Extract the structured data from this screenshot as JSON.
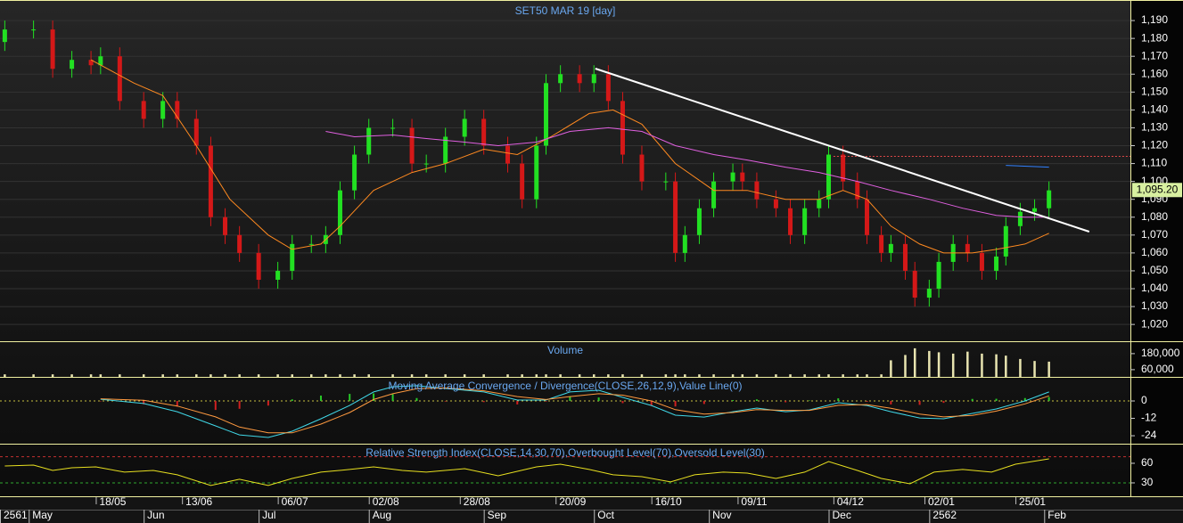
{
  "chart_data": [
    {
      "type": "candlestick",
      "title": "SET50 MAR 19   [day]",
      "x": [
        1,
        7,
        11,
        15,
        19,
        21,
        25,
        30,
        34,
        37,
        41,
        44,
        47,
        50,
        54,
        58,
        61,
        65,
        68,
        71,
        74,
        77,
        82,
        86,
        89,
        93,
        97,
        101,
        106,
        109,
        112,
        114,
        117,
        121,
        124,
        127,
        130,
        134,
        139,
        141,
        143,
        146,
        149,
        153,
        155,
        158,
        162,
        165,
        168,
        171,
        173,
        176,
        179,
        181,
        184,
        186,
        189,
        191,
        194,
        196,
        199,
        202,
        205,
        208,
        210,
        213,
        216,
        219
      ],
      "open": [
        1178,
        1185,
        1185,
        1163,
        1168,
        1165,
        1170,
        1145,
        1135,
        1145,
        1135,
        1120,
        1080,
        1070,
        1060,
        1045,
        1050,
        1065,
        1065,
        1070,
        1095,
        1115,
        1130,
        1130,
        1110,
        1110,
        1125,
        1135,
        1120,
        1110,
        1090,
        1120,
        1155,
        1160,
        1155,
        1160,
        1145,
        1115,
        1100,
        1100,
        1060,
        1070,
        1085,
        1100,
        1105,
        1100,
        1090,
        1085,
        1070,
        1085,
        1090,
        1115,
        1100,
        1090,
        1070,
        1060,
        1065,
        1050,
        1035,
        1040,
        1055,
        1065,
        1060,
        1050,
        1058,
        1075,
        1083,
        1085
      ],
      "high": [
        1190,
        1190,
        1190,
        1173,
        1173,
        1175,
        1175,
        1150,
        1150,
        1150,
        1140,
        1125,
        1085,
        1075,
        1065,
        1055,
        1070,
        1070,
        1075,
        1100,
        1120,
        1135,
        1135,
        1135,
        1115,
        1130,
        1140,
        1140,
        1125,
        1115,
        1125,
        1160,
        1165,
        1165,
        1165,
        1165,
        1150,
        1120,
        1105,
        1105,
        1075,
        1090,
        1105,
        1110,
        1110,
        1105,
        1095,
        1090,
        1090,
        1095,
        1120,
        1120,
        1105,
        1095,
        1075,
        1070,
        1070,
        1055,
        1045,
        1060,
        1070,
        1070,
        1065,
        1063,
        1080,
        1088,
        1090,
        1100
      ],
      "low": [
        1173,
        1180,
        1158,
        1158,
        1160,
        1160,
        1140,
        1130,
        1130,
        1130,
        1115,
        1075,
        1065,
        1055,
        1040,
        1040,
        1045,
        1060,
        1060,
        1065,
        1090,
        1110,
        1125,
        1105,
        1105,
        1105,
        1120,
        1115,
        1105,
        1085,
        1085,
        1115,
        1150,
        1150,
        1150,
        1140,
        1110,
        1095,
        1095,
        1055,
        1055,
        1065,
        1080,
        1095,
        1095,
        1085,
        1080,
        1065,
        1065,
        1080,
        1085,
        1095,
        1085,
        1065,
        1055,
        1055,
        1045,
        1030,
        1030,
        1035,
        1050,
        1055,
        1045,
        1045,
        1053,
        1070,
        1078,
        1080
      ],
      "close": [
        1185,
        1185,
        1163,
        1168,
        1165,
        1170,
        1145,
        1135,
        1145,
        1135,
        1120,
        1080,
        1070,
        1060,
        1045,
        1050,
        1065,
        1065,
        1070,
        1095,
        1115,
        1130,
        1130,
        1110,
        1110,
        1125,
        1135,
        1120,
        1110,
        1090,
        1120,
        1155,
        1160,
        1155,
        1160,
        1145,
        1115,
        1100,
        1100,
        1060,
        1070,
        1085,
        1100,
        1105,
        1100,
        1090,
        1085,
        1070,
        1085,
        1090,
        1115,
        1100,
        1090,
        1070,
        1060,
        1065,
        1050,
        1035,
        1040,
        1055,
        1065,
        1060,
        1050,
        1058,
        1075,
        1083,
        1085,
        1095
      ],
      "up_color": "#22e022",
      "down_color": "#d41818",
      "overlays": [
        {
          "color": "#ff8a20",
          "x": [
            19,
            28,
            34,
            41,
            48,
            56,
            61,
            67,
            71,
            78,
            86,
            93,
            101,
            108,
            115,
            123,
            128,
            134,
            141,
            149,
            156,
            164,
            171,
            176,
            181,
            186,
            192,
            197,
            203,
            208,
            214,
            219
          ],
          "values": [
            1168,
            1155,
            1148,
            1120,
            1090,
            1070,
            1062,
            1065,
            1075,
            1095,
            1105,
            1110,
            1118,
            1115,
            1125,
            1138,
            1140,
            1132,
            1110,
            1095,
            1095,
            1090,
            1090,
            1095,
            1090,
            1075,
            1065,
            1060,
            1060,
            1062,
            1065,
            1071
          ]
        },
        {
          "color": "#e060e0",
          "x": [
            68,
            74,
            82,
            89,
            97,
            104,
            112,
            119,
            127,
            134,
            141,
            149,
            156,
            164,
            171,
            179,
            186,
            194,
            201,
            208,
            214,
            219
          ],
          "values": [
            1128,
            1125,
            1126,
            1124,
            1122,
            1120,
            1122,
            1128,
            1130,
            1128,
            1120,
            1115,
            1112,
            1108,
            1105,
            1100,
            1095,
            1090,
            1085,
            1081,
            1080,
            1080
          ]
        },
        {
          "color": "#3080ff",
          "x": [
            210,
            219
          ],
          "values": [
            1109,
            1108
          ]
        },
        {
          "color": "#ffffff",
          "x": [
            124.3,
            227.4
          ],
          "values": [
            1163.1,
            1071.9
          ]
        }
      ],
      "reference_line": {
        "value": 1114,
        "from": 174,
        "color": "#e04848"
      },
      "last_price": {
        "value": 1095.2,
        "label": "1,095.20"
      },
      "xlim": [
        0,
        236
      ],
      "ylim": [
        1010.6,
        1200
      ],
      "grid": true,
      "yticks": [
        {
          "value": 1020,
          "label": "1,020"
        },
        {
          "value": 1030,
          "label": "1,030"
        },
        {
          "value": 1040,
          "label": "1,040"
        },
        {
          "value": 1050,
          "label": "1,050"
        },
        {
          "value": 1060,
          "label": "1,060"
        },
        {
          "value": 1070,
          "label": "1,070"
        },
        {
          "value": 1080,
          "label": "1,080"
        },
        {
          "value": 1090,
          "label": "1,090"
        },
        {
          "value": 1100,
          "label": "1,100"
        },
        {
          "value": 1110,
          "label": "1,110"
        },
        {
          "value": 1120,
          "label": "1,120"
        },
        {
          "value": 1130,
          "label": "1,130"
        },
        {
          "value": 1140,
          "label": "1,140"
        },
        {
          "value": 1150,
          "label": "1,150"
        },
        {
          "value": 1160,
          "label": "1,160"
        },
        {
          "value": 1170,
          "label": "1,170"
        },
        {
          "value": 1180,
          "label": "1,180"
        },
        {
          "value": 1190,
          "label": "1,190"
        }
      ]
    },
    {
      "type": "bar",
      "title": "Volume",
      "x": [
        1,
        7,
        11,
        15,
        19,
        21,
        25,
        30,
        34,
        37,
        41,
        44,
        47,
        50,
        54,
        58,
        61,
        65,
        68,
        71,
        74,
        77,
        82,
        86,
        89,
        93,
        97,
        101,
        106,
        109,
        112,
        114,
        117,
        121,
        124,
        127,
        130,
        134,
        139,
        141,
        143,
        146,
        149,
        153,
        155,
        158,
        162,
        165,
        168,
        171,
        173,
        176,
        179,
        181,
        184,
        186,
        189,
        191,
        194,
        196,
        199,
        202,
        205,
        208,
        210,
        213,
        216,
        219
      ],
      "values": [
        25000,
        25000,
        25000,
        25000,
        25000,
        25000,
        25000,
        25000,
        25000,
        25000,
        25000,
        25000,
        25000,
        25000,
        25000,
        25000,
        25000,
        25000,
        25000,
        25000,
        25000,
        25000,
        25000,
        25000,
        25000,
        25000,
        25000,
        25000,
        25000,
        25000,
        25000,
        25000,
        25000,
        25000,
        25000,
        25000,
        25000,
        25000,
        25000,
        25000,
        25000,
        25000,
        25000,
        25000,
        25000,
        25000,
        25000,
        25000,
        25000,
        25000,
        25000,
        25000,
        25000,
        25000,
        25000,
        130000,
        170000,
        220000,
        200000,
        190000,
        180000,
        195000,
        180000,
        175000,
        165000,
        140000,
        125000,
        120000
      ],
      "color": "#e8e4b0",
      "xlim": [
        0,
        236
      ],
      "ylim": [
        6000,
        266000
      ],
      "yticks": [
        {
          "value": 180000,
          "label": "180,000"
        },
        {
          "value": 60000,
          "label": "60,000"
        }
      ]
    },
    {
      "type": "macd",
      "title": "Moving Average Convergence / Divergence(CLOSE,26,12,9),Value Line(0)",
      "x": [
        21,
        30,
        37,
        45,
        50,
        56,
        61,
        67,
        73,
        78,
        82,
        87,
        93,
        101,
        108,
        114,
        119,
        125,
        130,
        136,
        141,
        147,
        153,
        158,
        164,
        169,
        175,
        181,
        186,
        192,
        197,
        203,
        208,
        214,
        219
      ],
      "series": [
        {
          "color": "#40d8e8",
          "values": [
            1.2,
            -1.8,
            -7.4,
            -17.2,
            -23.4,
            -25.2,
            -20.9,
            -12.3,
            -3.1,
            6.2,
            9.8,
            10.5,
            8.6,
            6.2,
            0.6,
            0.6,
            6.2,
            7.4,
            2.5,
            -3.1,
            -9.8,
            -11.1,
            -7.4,
            -4.9,
            -7.4,
            -6.2,
            -1.2,
            -3.1,
            -7.4,
            -11.7,
            -12.3,
            -8.6,
            -5.5,
            0,
            6.2
          ]
        },
        {
          "color": "#ff9a40",
          "values": [
            1.5,
            0.5,
            -3.5,
            -11,
            -18,
            -22,
            -22,
            -16,
            -8,
            1,
            5,
            8.5,
            9,
            7,
            3,
            1,
            3,
            5,
            4,
            0,
            -6,
            -9,
            -8,
            -6,
            -6.5,
            -6.5,
            -3,
            -2.5,
            -5,
            -9,
            -11,
            -10,
            -7,
            -2,
            3.5
          ]
        }
      ],
      "histogram": {
        "up_color": "#28c828",
        "down_color": "#d02020",
        "values": [
          -0.3,
          -2.3,
          -3.9,
          -6.2,
          -5.4,
          -3.2,
          1.1,
          3.7,
          4.9,
          5.2,
          4.8,
          2,
          -0.4,
          -0.8,
          -2.4,
          -0.4,
          3.2,
          2.4,
          -1.5,
          -3.1,
          -3.8,
          -2.1,
          0.6,
          1.1,
          -0.9,
          0.3,
          1.8,
          -0.6,
          -2.4,
          -2.7,
          -1.3,
          1.4,
          1.5,
          2,
          2.7
        ]
      },
      "value_line": 0,
      "value_line_color": "#c8c040",
      "xlim": [
        0,
        236
      ],
      "ylim": [
        -29.5,
        16
      ],
      "yticks": [
        0,
        -12,
        -24
      ]
    },
    {
      "type": "rsi",
      "title": "Relative Strength Index(CLOSE,14,30,70),Overbought Level(70),Oversold Level(30)",
      "x": [
        1,
        7,
        11,
        15,
        20,
        26,
        32,
        37,
        44,
        50,
        56,
        61,
        67,
        73,
        78,
        84,
        89,
        97,
        104,
        112,
        117,
        123,
        128,
        134,
        140,
        145,
        151,
        156,
        162,
        168,
        173,
        179,
        184,
        190,
        195,
        201,
        207,
        212,
        219
      ],
      "values": [
        55.9,
        57.3,
        49.1,
        53.2,
        54.5,
        46.4,
        49.1,
        42.3,
        26,
        35.5,
        26,
        36.8,
        46.4,
        50.5,
        54.5,
        49.1,
        46.4,
        51.8,
        40.9,
        54.5,
        58.6,
        50.5,
        42.3,
        39.5,
        31.4,
        42.3,
        46.4,
        45,
        36.8,
        46.4,
        62.7,
        49.1,
        36.8,
        28.6,
        46.4,
        50.5,
        46.4,
        58.6,
        66.8
      ],
      "color": "#e8e020",
      "levels": [
        {
          "value": 70,
          "color": "#c83030"
        },
        {
          "value": 30,
          "color": "#30a830"
        }
      ],
      "xlim": [
        0,
        236
      ],
      "ylim": [
        9.5,
        88.6
      ],
      "yticks": [
        60,
        30
      ],
      "xticks": [
        {
          "value": 20,
          "label": "18/05"
        },
        {
          "value": 38,
          "label": "13/06"
        },
        {
          "value": 58,
          "label": "06/07"
        },
        {
          "value": 77,
          "label": "02/08"
        },
        {
          "value": 96,
          "label": "28/08"
        },
        {
          "value": 116,
          "label": "20/09"
        },
        {
          "value": 136,
          "label": "16/10"
        },
        {
          "value": 154,
          "label": "09/11"
        },
        {
          "value": 174,
          "label": "04/12"
        },
        {
          "value": 193,
          "label": "02/01"
        },
        {
          "value": 212,
          "label": "25/01"
        }
      ],
      "xperiod_ticks": [
        {
          "value": 0,
          "label": "2561"
        },
        {
          "value": 6,
          "label": "May"
        },
        {
          "value": 30,
          "label": "Jun"
        },
        {
          "value": 54,
          "label": "Jul"
        },
        {
          "value": 77,
          "label": "Aug"
        },
        {
          "value": 101,
          "label": "Sep"
        },
        {
          "value": 124,
          "label": "Oct"
        },
        {
          "value": 148,
          "label": "Nov"
        },
        {
          "value": 173,
          "label": "Dec"
        },
        {
          "value": 194,
          "label": "2562"
        },
        {
          "value": 218,
          "label": "Feb"
        }
      ]
    }
  ]
}
